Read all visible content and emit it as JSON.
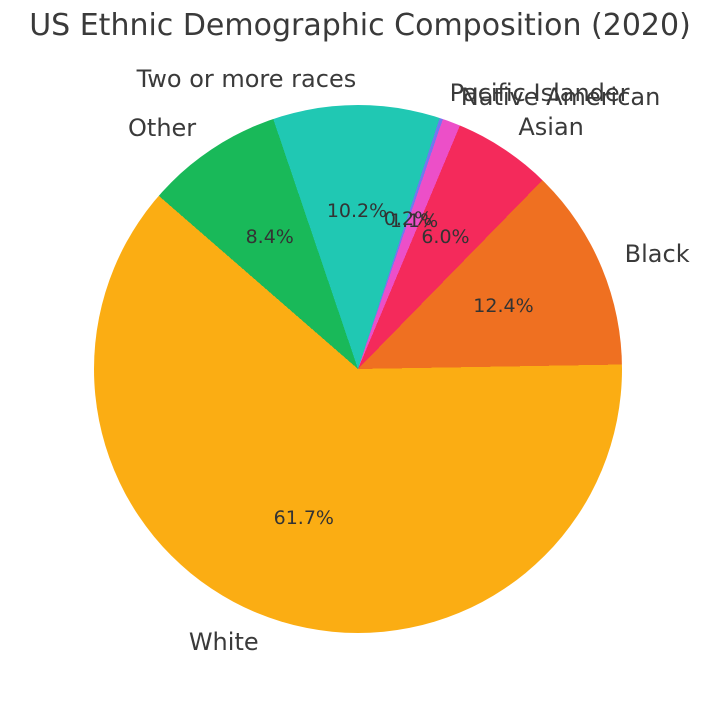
{
  "title": "US Ethnic Demographic Composition (2020)",
  "colors": {
    "background": "#ffffff",
    "text": "#3a3a3a"
  },
  "chart_data": {
    "type": "pie",
    "title": "US Ethnic Demographic Composition (2020)",
    "legend": false,
    "direction": "counterclockwise",
    "start_angle_deg": 139,
    "autopct_distance": 0.6,
    "label_distance": 1.1,
    "slices": [
      {
        "label": "White",
        "value": 61.6,
        "pct_label": "61.7%",
        "color": "#FBAD13"
      },
      {
        "label": "Black",
        "value": 12.4,
        "pct_label": "12.4%",
        "color": "#EF7021"
      },
      {
        "label": "Asian",
        "value": 6.0,
        "pct_label": "6.0%",
        "color": "#F42A5B"
      },
      {
        "label": "Native American",
        "value": 1.1,
        "pct_label": "1.1%",
        "color": "#EC4FC8"
      },
      {
        "label": "Pacific Islander",
        "value": 0.2,
        "pct_label": "0.2%",
        "color": "#7277F0"
      },
      {
        "label": "Two or more races",
        "value": 10.2,
        "pct_label": "10.2%",
        "color": "#20C8B3"
      },
      {
        "label": "Other",
        "value": 8.4,
        "pct_label": "8.4%",
        "color": "#19B959"
      }
    ]
  }
}
